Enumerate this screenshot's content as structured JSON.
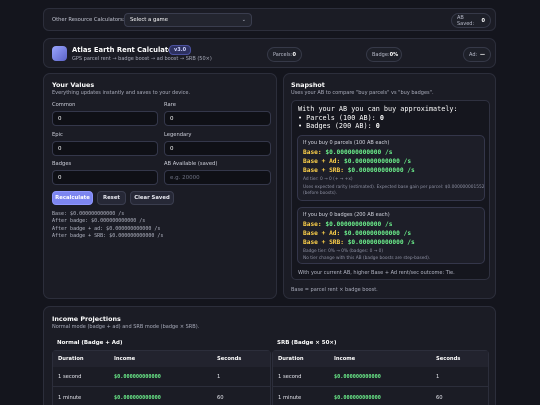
{
  "top_bar": {
    "calc_label": "Other Resource Calculators:",
    "select_value": "Select a game",
    "ab_saved_label": "AB Saved:",
    "ab_saved_value": "0"
  },
  "header": {
    "title": "Atlas Earth Rent Calculator",
    "version": "v3.0",
    "subtitle": "GPS parcel rent → badge boost → ad boost → SRB (50×)",
    "parcels_label": "Parcels:",
    "parcels_value": "0",
    "badge_label": "Badge:",
    "badge_value": "0%",
    "ad_label": "Ad:",
    "ad_value": "—"
  },
  "values": {
    "title": "Your Values",
    "subtitle": "Everything updates instantly and saves to your device.",
    "common_label": "Common",
    "common_value": "0",
    "rare_label": "Rare",
    "rare_value": "0",
    "epic_label": "Epic",
    "epic_value": "0",
    "legendary_label": "Legendary",
    "legendary_value": "0",
    "badges_label": "Badges",
    "badges_value": "0",
    "ab_label": "AB Available (saved)",
    "ab_placeholder": "e.g. 20000",
    "recalc_label": "Recalculate",
    "reset_label": "Reset",
    "clear_label": "Clear Saved",
    "summary": [
      "Base: $0.000000000000 /s",
      "After badge: $0.000000000000 /s",
      "After badge + ad: $0.000000000000 /s",
      "After badge + SRB: $0.000000000000 /s"
    ]
  },
  "snapshot": {
    "title": "Snapshot",
    "subtitle": "Uses your AB to compare \"buy parcels\" vs \"buy badges\".",
    "box_head": "With your AB you can buy approximately:",
    "parcels_line_label": "• Parcels (100 AB): ",
    "parcels_line_value": "0",
    "badges_line_label": "• Badges (200 AB): ",
    "badges_line_value": "0",
    "opt1": {
      "head": "If you buy 0 parcels (100 AB each)",
      "base_label": "Base: ",
      "base_value": "$0.000000000000 /s",
      "ad_label": "Base + Ad: ",
      "ad_value": "$0.000000000000 /s",
      "srb_label": "Base + SRB: ",
      "srb_value": "$0.000000000000 /s",
      "tier": "Ad tier: 0 → 0 (+ → +x)",
      "note1": "Uses expected rarity (estimated). Expected base gain per parcel: $0.000000001552",
      "note2": "(before boosts)."
    },
    "opt2": {
      "head": "If you buy 0 badges (200 AB each)",
      "base_label": "Base: ",
      "base_value": "$0.000000000000 /s",
      "ad_label": "Base + Ad: ",
      "ad_value": "$0.000000000000 /s",
      "srb_label": "Base + SRB: ",
      "srb_value": "$0.000000000000 /s",
      "tier": "Badge tier: 0% → 0% (badges: 0 → 0)",
      "note1": "No tier change with this AB (badge boosts are step-based)."
    },
    "outcome": "With your current AB, higher Base + Ad rent/sec outcome: Tie.",
    "footnote": "Base = parcel rent × badge boost."
  },
  "projections": {
    "title": "Income Projections",
    "subtitle": "Normal mode (badge + ad) and SRB mode (badge × SRB).",
    "normal": {
      "title": "Normal (Badge + Ad)",
      "col_duration": "Duration",
      "col_income": "Income",
      "col_seconds": "Seconds",
      "rows": [
        {
          "duration": "1 second",
          "income": "$0.000000000000",
          "seconds": "1"
        },
        {
          "duration": "1 minute",
          "income": "$0.000000000000",
          "seconds": "60"
        }
      ]
    },
    "srb": {
      "title": "SRB (Badge × 50×)",
      "col_duration": "Duration",
      "col_income": "Income",
      "col_seconds": "Seconds",
      "rows": [
        {
          "duration": "1 second",
          "income": "$0.000000000000",
          "seconds": "1"
        },
        {
          "duration": "1 minute",
          "income": "$0.000000000000",
          "seconds": "60"
        }
      ]
    }
  },
  "colors": {
    "accent": "#7d86f0",
    "green": "#6cf08c",
    "yellow": "#ffd24a"
  }
}
